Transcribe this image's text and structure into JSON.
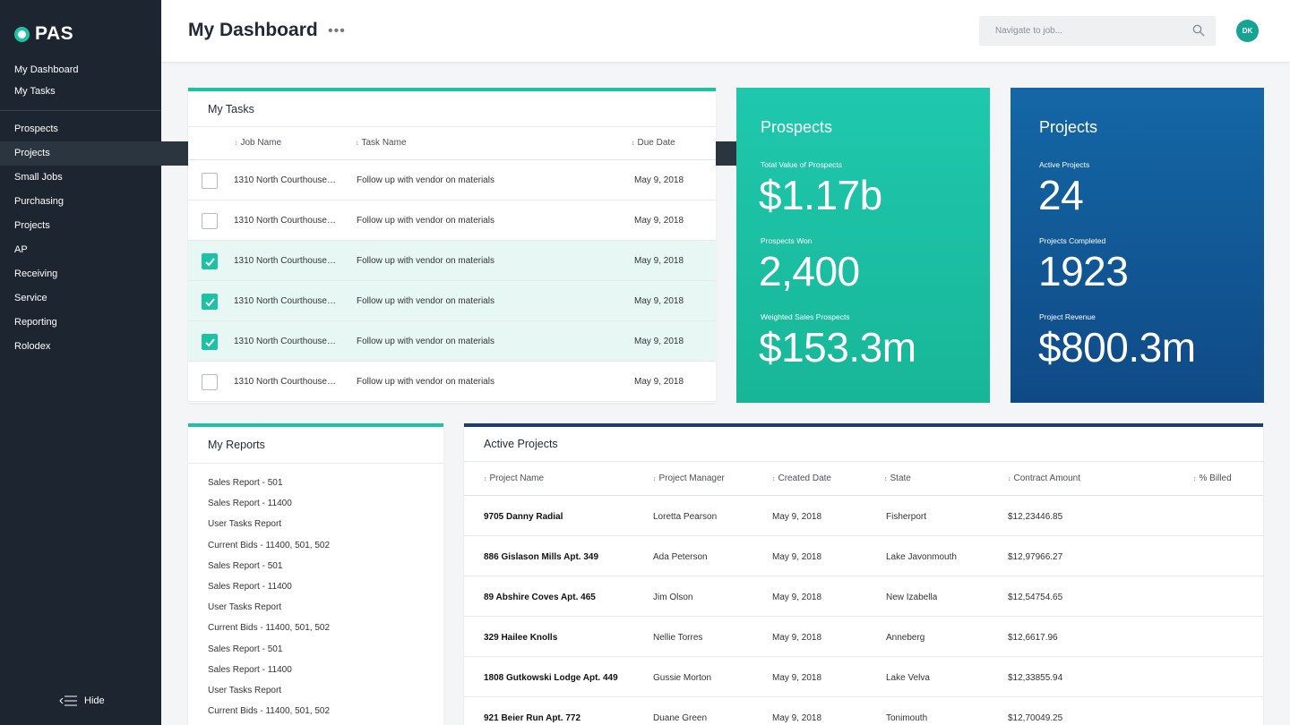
{
  "app": {
    "logo_text": "PAS"
  },
  "sidebar": {
    "top_items": [
      {
        "label": "My Dashboard"
      },
      {
        "label": "My Tasks"
      }
    ],
    "items": [
      {
        "label": "Prospects"
      },
      {
        "label": "Projects",
        "active": true
      },
      {
        "label": "Small Jobs"
      },
      {
        "label": "Purchasing"
      },
      {
        "label": "Projects"
      },
      {
        "label": "AP"
      },
      {
        "label": "Receiving"
      },
      {
        "label": "Service"
      },
      {
        "label": "Reporting"
      },
      {
        "label": "Rolodex"
      }
    ],
    "hide_label": "Hide"
  },
  "header": {
    "title": "My Dashboard",
    "more": "•••",
    "search_placeholder": "Navigate to job...",
    "avatar_initials": "DK"
  },
  "my_tasks": {
    "title": "My Tasks",
    "columns": {
      "job": "Job Name",
      "task": "Task Name",
      "due": "Due Date"
    },
    "rows": [
      {
        "job": "1310 North Courthouse…",
        "task": "Follow up with vendor on materials",
        "due": "May 9, 2018",
        "checked": false
      },
      {
        "job": "1310 North Courthouse…",
        "task": "Follow up with vendor on materials",
        "due": "May 9, 2018",
        "checked": false
      },
      {
        "job": "1310 North Courthouse…",
        "task": "Follow up with vendor on materials",
        "due": "May 9, 2018",
        "checked": true
      },
      {
        "job": "1310 North Courthouse…",
        "task": "Follow up with vendor on materials",
        "due": "May 9, 2018",
        "checked": true
      },
      {
        "job": "1310 North Courthouse…",
        "task": "Follow up with vendor on materials",
        "due": "May 9, 2018",
        "checked": true
      },
      {
        "job": "1310 North Courthouse…",
        "task": "Follow up with vendor on materials",
        "due": "May 9, 2018",
        "checked": false
      }
    ]
  },
  "prospects_card": {
    "title": "Prospects",
    "stats": [
      {
        "label": "Total Value of Prospects",
        "value": "$1.17b"
      },
      {
        "label": "Prospects Won",
        "value": "2,400"
      },
      {
        "label": "Weighted Sales Prospects",
        "value": "$153.3m"
      }
    ]
  },
  "projects_card": {
    "title": "Projects",
    "stats": [
      {
        "label": "Active Projects",
        "value": "24"
      },
      {
        "label": "Projects Completed",
        "value": "1923"
      },
      {
        "label": "Project Revenue",
        "value": "$800.3m"
      }
    ]
  },
  "my_reports": {
    "title": "My Reports",
    "items": [
      "Sales Report - 501",
      "Sales Report - 11400",
      "User Tasks Report",
      "Current Bids - 11400, 501, 502",
      "Sales Report - 501",
      "Sales Report - 11400",
      "User Tasks Report",
      "Current Bids - 11400, 501, 502",
      "Sales Report - 501",
      "Sales Report - 11400",
      "User Tasks Report",
      "Current Bids - 11400, 501, 502"
    ]
  },
  "active_projects": {
    "title": "Active Projects",
    "columns": {
      "name": "Project Name",
      "manager": "Project Manager",
      "created": "Created Date",
      "state": "State",
      "amount": "Contract Amount",
      "billed": "% Billed"
    },
    "rows": [
      {
        "name": "9705 Danny Radial",
        "manager": "Loretta Pearson",
        "created": "May 9, 2018",
        "state": "Fisherport",
        "amount": "$12,23446.85"
      },
      {
        "name": "886 Gislason Mills Apt. 349",
        "manager": "Ada Peterson",
        "created": "May 9, 2018",
        "state": "Lake Javonmouth",
        "amount": "$12,97966.27"
      },
      {
        "name": "89 Abshire Coves Apt. 465",
        "manager": "Jim Olson",
        "created": "May 9, 2018",
        "state": "New Izabella",
        "amount": "$12,54754.65"
      },
      {
        "name": "329 Hailee Knolls",
        "manager": "Nellie Torres",
        "created": "May 9, 2018",
        "state": "Anneberg",
        "amount": "$12,6617.96"
      },
      {
        "name": "1808 Gutkowski Lodge Apt. 449",
        "manager": "Gussie Morton",
        "created": "May 9, 2018",
        "state": "Lake Velva",
        "amount": "$12,33855.94"
      },
      {
        "name": "921 Beier Run Apt. 772",
        "manager": "Duane Green",
        "created": "May 9, 2018",
        "state": "Tonimouth",
        "amount": "$12,70049.25"
      }
    ]
  },
  "colors": {
    "sidebar": "#1d2630",
    "accent_teal": "#1dc2a5",
    "projects_blue": "#1467a6",
    "navy_border": "#1a3e6f"
  }
}
